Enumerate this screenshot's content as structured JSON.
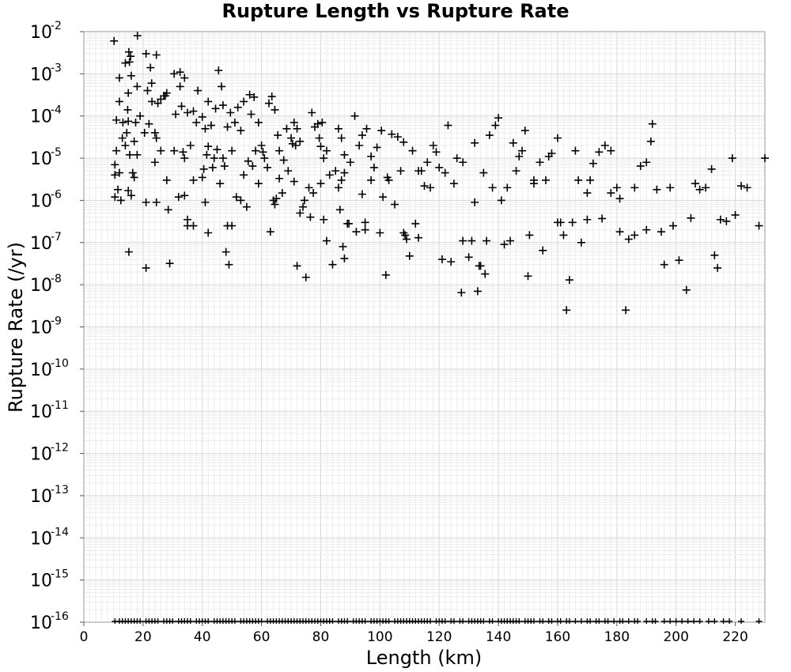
{
  "chart_data": {
    "type": "scatter",
    "title": "Rupture Length vs Rupture Rate",
    "xlabel": "Length (km)",
    "ylabel": "Rupture Rate (/yr)",
    "xlim": [
      0,
      230
    ],
    "ylim_log10": [
      -16,
      -2
    ],
    "yscale": "log",
    "grid": true,
    "marker": "plus",
    "marker_color": "#000000",
    "xticks": [
      0,
      20,
      40,
      60,
      80,
      100,
      120,
      140,
      160,
      180,
      200,
      220
    ],
    "yticks": [
      {
        "base": "10",
        "exp": "-2",
        "value": -2
      },
      {
        "base": "10",
        "exp": "-3",
        "value": -3
      },
      {
        "base": "10",
        "exp": "-4",
        "value": -4
      },
      {
        "base": "10",
        "exp": "-5",
        "value": -5
      },
      {
        "base": "10",
        "exp": "-6",
        "value": -6
      },
      {
        "base": "10",
        "exp": "-7",
        "value": -7
      },
      {
        "base": "10",
        "exp": "-8",
        "value": -8
      },
      {
        "base": "10",
        "exp": "-9",
        "value": -9
      },
      {
        "base": "10",
        "exp": "-10",
        "value": -10
      },
      {
        "base": "10",
        "exp": "-11",
        "value": -11
      },
      {
        "base": "10",
        "exp": "-12",
        "value": -12
      },
      {
        "base": "10",
        "exp": "-13",
        "value": -13
      },
      {
        "base": "10",
        "exp": "-14",
        "value": -14
      },
      {
        "base": "10",
        "exp": "-15",
        "value": -15
      },
      {
        "base": "10",
        "exp": "-16",
        "value": -16
      }
    ],
    "points": [
      [
        10.2,
        0.006
      ],
      [
        18.1,
        0.008
      ],
      [
        15.2,
        0.0033
      ],
      [
        15.8,
        0.0026
      ],
      [
        14.0,
        0.0018
      ],
      [
        15.4,
        0.0019
      ],
      [
        12.0,
        0.0008
      ],
      [
        16.0,
        0.0009
      ],
      [
        21.0,
        0.003
      ],
      [
        24.5,
        0.0028
      ],
      [
        22.5,
        0.0014
      ],
      [
        22.9,
        0.0006
      ],
      [
        18.0,
        0.0005
      ],
      [
        21.5,
        0.0004
      ],
      [
        15.0,
        0.00035
      ],
      [
        12.0,
        0.00022
      ],
      [
        14.8,
        0.00014
      ],
      [
        11.0,
        8e-05
      ],
      [
        15.0,
        7.5e-05
      ],
      [
        13.2,
        7e-05
      ],
      [
        14.5,
        4e-05
      ],
      [
        11.0,
        1.5e-05
      ],
      [
        10.5,
        7e-06
      ],
      [
        10.5,
        4e-06
      ],
      [
        12.0,
        4.5e-06
      ],
      [
        14.0,
        2e-05
      ],
      [
        15.5,
        1.2e-05
      ],
      [
        16.5,
        4.5e-06
      ],
      [
        17.0,
        3.5e-06
      ],
      [
        18.0,
        1.2e-05
      ],
      [
        10.5,
        1.2e-06
      ],
      [
        11.5,
        1.8e-06
      ],
      [
        12.5,
        1e-06
      ],
      [
        15.0,
        1.7e-06
      ],
      [
        16.0,
        1.3e-06
      ],
      [
        15.2,
        6e-08
      ],
      [
        21.0,
        2.5e-08
      ],
      [
        21.0,
        9e-07
      ],
      [
        24.5,
        9e-07
      ],
      [
        24.0,
        8e-06
      ],
      [
        26.0,
        1.5e-05
      ],
      [
        28.0,
        3e-06
      ],
      [
        29.0,
        3.2e-08
      ],
      [
        28.5,
        6e-07
      ],
      [
        30.5,
        1.5e-05
      ],
      [
        32.0,
        1.2e-06
      ],
      [
        34.0,
        1.3e-06
      ],
      [
        35.0,
        3.5e-07
      ],
      [
        35.0,
        2.5e-07
      ],
      [
        37.0,
        2.5e-07
      ],
      [
        37.0,
        3e-06
      ],
      [
        34.0,
        1e-05
      ],
      [
        33.5,
        1.4e-05
      ],
      [
        31.0,
        0.00011
      ],
      [
        33.0,
        0.00017
      ],
      [
        35.0,
        0.00012
      ],
      [
        37.0,
        0.00013
      ],
      [
        38.5,
        0.0004
      ],
      [
        40.0,
        9.5e-05
      ],
      [
        42.0,
        0.00022
      ],
      [
        41.0,
        5e-05
      ],
      [
        30.5,
        0.001
      ],
      [
        32.5,
        0.0011
      ],
      [
        34.0,
        0.0008
      ],
      [
        32.5,
        0.0005
      ],
      [
        28.0,
        0.00035
      ],
      [
        26.0,
        0.00025
      ],
      [
        25.0,
        0.0002
      ],
      [
        22.0,
        6.5e-05
      ],
      [
        24.0,
        4e-05
      ],
      [
        24.5,
        3e-05
      ],
      [
        27.5,
        0.0003
      ],
      [
        41.5,
        1.2e-05
      ],
      [
        40.5,
        5.5e-06
      ],
      [
        40.0,
        3.5e-06
      ],
      [
        41.0,
        9e-07
      ],
      [
        42.0,
        1.7e-07
      ],
      [
        42.0,
        1.9e-05
      ],
      [
        43.5,
        6e-06
      ],
      [
        44.0,
        1e-05
      ],
      [
        46.0,
        2.5e-06
      ],
      [
        47.5,
        6.5e-06
      ],
      [
        47.0,
        1e-05
      ],
      [
        48.5,
        5.5e-05
      ],
      [
        49.5,
        0.00012
      ],
      [
        47.0,
        0.00018
      ],
      [
        46.5,
        0.0005
      ],
      [
        45.5,
        0.0012
      ],
      [
        44.5,
        0.00015
      ],
      [
        43.0,
        6e-05
      ],
      [
        48.0,
        6e-08
      ],
      [
        49.0,
        3e-08
      ],
      [
        48.5,
        2.5e-07
      ],
      [
        50.0,
        2.5e-07
      ],
      [
        51.5,
        1.2e-06
      ],
      [
        53.0,
        1e-06
      ],
      [
        54.0,
        4e-06
      ],
      [
        55.0,
        7e-07
      ],
      [
        55.5,
        8.5e-06
      ],
      [
        56.0,
        0.00032
      ],
      [
        57.5,
        0.00028
      ],
      [
        56.5,
        0.00011
      ],
      [
        59.0,
        7e-05
      ],
      [
        58.0,
        1.5e-05
      ],
      [
        57.0,
        6.5e-06
      ],
      [
        60.0,
        2e-05
      ],
      [
        60.5,
        1.4e-05
      ],
      [
        61.0,
        1e-05
      ],
      [
        63.5,
        0.00029
      ],
      [
        63.0,
        1.8e-07
      ],
      [
        64.0,
        1e-06
      ],
      [
        64.5,
        8e-07
      ],
      [
        65.0,
        1.1e-06
      ],
      [
        66.0,
        3.3e-06
      ],
      [
        67.0,
        1.5e-06
      ],
      [
        66.0,
        1.5e-05
      ],
      [
        65.5,
        3.5e-05
      ],
      [
        64.5,
        0.00014
      ],
      [
        62.5,
        0.0002
      ],
      [
        68.5,
        5e-05
      ],
      [
        70.0,
        3e-05
      ],
      [
        70.5,
        2.2e-05
      ],
      [
        71.0,
        7e-05
      ],
      [
        72.0,
        5e-05
      ],
      [
        71.0,
        2.8e-06
      ],
      [
        72.0,
        2.8e-08
      ],
      [
        73.0,
        5e-07
      ],
      [
        74.0,
        7e-07
      ],
      [
        75.0,
        1.5e-08
      ],
      [
        76.5,
        4e-07
      ],
      [
        74.5,
        1e-06
      ],
      [
        76.0,
        2e-06
      ],
      [
        77.0,
        0.00012
      ],
      [
        79.0,
        6.5e-05
      ],
      [
        80.5,
        7e-05
      ],
      [
        79.5,
        3e-05
      ],
      [
        80.0,
        1.9e-05
      ],
      [
        81.0,
        1e-05
      ],
      [
        82.0,
        1.1e-07
      ],
      [
        81.0,
        3.5e-07
      ],
      [
        80.0,
        2.5e-06
      ],
      [
        84.0,
        3e-08
      ],
      [
        86.0,
        2e-06
      ],
      [
        87.0,
        3e-06
      ],
      [
        88.0,
        4.5e-06
      ],
      [
        86.5,
        6e-07
      ],
      [
        87.5,
        8e-08
      ],
      [
        88.0,
        4.2e-08
      ],
      [
        89.5,
        2.8e-07
      ],
      [
        87.0,
        3e-05
      ],
      [
        88.0,
        1.2e-05
      ],
      [
        86.0,
        5e-05
      ],
      [
        91.5,
        0.0001
      ],
      [
        93.0,
        2e-05
      ],
      [
        92.0,
        1.8e-07
      ],
      [
        94.0,
        1.4e-06
      ],
      [
        95.0,
        3e-07
      ],
      [
        95.0,
        2e-07
      ],
      [
        97.0,
        1.1e-05
      ],
      [
        98.0,
        6e-06
      ],
      [
        99.0,
        1.8e-05
      ],
      [
        100.0,
        1.7e-07
      ],
      [
        101.0,
        1.2e-06
      ],
      [
        102.0,
        1.7e-08
      ],
      [
        102.5,
        3.5e-06
      ],
      [
        103.0,
        3e-06
      ],
      [
        104.0,
        3.7e-05
      ],
      [
        106.0,
        3.2e-05
      ],
      [
        105.0,
        8e-07
      ],
      [
        108.0,
        1.7e-07
      ],
      [
        108.5,
        1.5e-07
      ],
      [
        109.0,
        1.2e-07
      ],
      [
        110.0,
        4.8e-08
      ],
      [
        112.0,
        2.8e-07
      ],
      [
        113.0,
        1.3e-07
      ],
      [
        115.0,
        2.2e-06
      ],
      [
        114.0,
        5e-06
      ],
      [
        117.0,
        2e-06
      ],
      [
        118.0,
        2e-05
      ],
      [
        119.0,
        1.4e-05
      ],
      [
        120.0,
        6e-06
      ],
      [
        122.0,
        4.5e-06
      ],
      [
        123.0,
        6e-05
      ],
      [
        124.0,
        3.5e-08
      ],
      [
        125.0,
        2.5e-06
      ],
      [
        127.5,
        6.5e-09
      ],
      [
        128.0,
        1.1e-07
      ],
      [
        130.0,
        4.5e-08
      ],
      [
        131.0,
        1.1e-07
      ],
      [
        132.0,
        9e-07
      ],
      [
        133.0,
        7e-09
      ],
      [
        133.5,
        2.8e-08
      ],
      [
        134.0,
        2.8e-08
      ],
      [
        135.5,
        1.8e-08
      ],
      [
        136.0,
        1.1e-07
      ],
      [
        137.0,
        3.5e-05
      ],
      [
        139.0,
        6e-05
      ],
      [
        140.0,
        9e-05
      ],
      [
        141.0,
        1e-06
      ],
      [
        142.0,
        9e-08
      ],
      [
        144.0,
        1.1e-07
      ],
      [
        145.0,
        2.3e-05
      ],
      [
        147.0,
        1.1e-05
      ],
      [
        149.0,
        4.5e-05
      ],
      [
        150.0,
        1.6e-08
      ],
      [
        150.5,
        1.5e-07
      ],
      [
        152.0,
        2.5e-06
      ],
      [
        155.0,
        6.5e-08
      ],
      [
        156.0,
        3e-06
      ],
      [
        158.0,
        1.3e-05
      ],
      [
        160.0,
        3e-05
      ],
      [
        161.0,
        3e-07
      ],
      [
        162.0,
        1.5e-07
      ],
      [
        163.0,
        2.5e-09
      ],
      [
        164.0,
        1.3e-08
      ],
      [
        165.0,
        3e-07
      ],
      [
        166.0,
        1.5e-05
      ],
      [
        168.0,
        1e-07
      ],
      [
        170.0,
        3.5e-07
      ],
      [
        172.0,
        7.5e-06
      ],
      [
        174.0,
        1.4e-05
      ],
      [
        176.0,
        2e-05
      ],
      [
        178.0,
        1.5e-06
      ],
      [
        180.0,
        2e-06
      ],
      [
        181.0,
        1.8e-07
      ],
      [
        183.0,
        2.5e-09
      ],
      [
        184.0,
        1.2e-07
      ],
      [
        186.0,
        2e-06
      ],
      [
        188.0,
        6.5e-06
      ],
      [
        190.0,
        8e-06
      ],
      [
        191.5,
        2.5e-05
      ],
      [
        192.0,
        6.5e-05
      ],
      [
        193.5,
        1.8e-06
      ],
      [
        196.0,
        3e-08
      ],
      [
        198.0,
        2e-06
      ],
      [
        201.0,
        3.8e-08
      ],
      [
        203.5,
        7.5e-09
      ],
      [
        205.0,
        3.8e-07
      ],
      [
        206.5,
        2.5e-06
      ],
      [
        208.0,
        1.8e-06
      ],
      [
        210.0,
        2e-06
      ],
      [
        212.0,
        5.5e-06
      ],
      [
        213.0,
        5e-08
      ],
      [
        214.0,
        2.5e-08
      ],
      [
        215.0,
        3.5e-07
      ],
      [
        217.0,
        3.2e-07
      ],
      [
        219.0,
        1e-05
      ],
      [
        220.0,
        4.5e-07
      ],
      [
        222.0,
        2.2e-06
      ],
      [
        224.0,
        2e-06
      ],
      [
        228.0,
        2.5e-07
      ],
      [
        230.0,
        1e-05
      ],
      [
        199.0,
        2.5e-07
      ],
      [
        195.0,
        1.8e-07
      ],
      [
        190.0,
        2e-07
      ],
      [
        186.0,
        1.5e-07
      ],
      [
        175.0,
        3.7e-07
      ],
      [
        170.0,
        1.5e-06
      ],
      [
        167.0,
        3e-06
      ],
      [
        157.0,
        1.1e-05
      ],
      [
        154.0,
        8e-06
      ],
      [
        146.0,
        5e-06
      ],
      [
        143.0,
        2e-06
      ],
      [
        138.0,
        2e-06
      ],
      [
        126.0,
        1e-05
      ],
      [
        121.0,
        4e-08
      ],
      [
        116.0,
        8e-06
      ],
      [
        111.0,
        1.5e-05
      ],
      [
        107.0,
        5e-06
      ],
      [
        97.0,
        3e-06
      ],
      [
        94.0,
        3.5e-05
      ],
      [
        90.0,
        8e-06
      ],
      [
        85.0,
        5e-06
      ],
      [
        82.0,
        1.5e-05
      ],
      [
        78.0,
        5.5e-05
      ],
      [
        73.0,
        2.5e-05
      ],
      [
        69.0,
        5e-06
      ],
      [
        67.5,
        9e-06
      ],
      [
        62.0,
        6e-06
      ],
      [
        59.0,
        2.5e-06
      ],
      [
        53.0,
        4.5e-05
      ],
      [
        51.0,
        7e-05
      ],
      [
        52.0,
        0.00016
      ],
      [
        54.0,
        0.00022
      ],
      [
        50.0,
        1.5e-05
      ],
      [
        45.0,
        1.6e-05
      ],
      [
        38.0,
        7e-05
      ],
      [
        36.0,
        2e-05
      ],
      [
        27.0,
        0.0003
      ],
      [
        23.0,
        0.00022
      ],
      [
        19.0,
        0.0001
      ],
      [
        17.5,
        7e-05
      ],
      [
        20.5,
        4e-05
      ],
      [
        13.0,
        3e-05
      ],
      [
        17.0,
        2.5e-05
      ],
      [
        108.0,
        2.4e-05
      ],
      [
        113.0,
        5e-06
      ],
      [
        128.0,
        8e-06
      ],
      [
        132.0,
        2.3e-05
      ],
      [
        135.0,
        4.5e-06
      ],
      [
        148.0,
        1.5e-05
      ],
      [
        152.0,
        3e-06
      ],
      [
        160.0,
        3e-07
      ],
      [
        171.0,
        3e-06
      ],
      [
        178.0,
        1.5e-05
      ],
      [
        181.0,
        1.1e-06
      ],
      [
        100.5,
        4.5e-05
      ],
      [
        95.5,
        5e-05
      ],
      [
        89.0,
        2.8e-07
      ],
      [
        83.0,
        4e-06
      ],
      [
        77.5,
        1.5e-06
      ],
      [
        71.5,
        2e-05
      ]
    ],
    "rug_x": [
      10.5,
      12,
      13,
      14,
      15,
      16,
      17,
      18,
      19,
      21,
      22,
      23,
      24,
      25,
      27,
      28,
      29,
      30,
      32,
      33,
      34,
      35,
      36,
      38,
      39,
      40,
      41,
      42,
      44,
      45,
      46,
      47,
      48,
      49,
      50,
      51,
      53,
      54,
      55,
      56,
      57,
      58,
      59,
      60,
      62,
      63,
      64,
      65,
      66,
      67,
      68,
      69,
      70,
      71,
      72,
      73,
      74,
      75,
      76,
      77,
      78,
      79,
      80,
      81,
      82,
      83,
      84,
      86,
      87,
      88,
      89,
      91,
      92,
      93,
      94,
      95,
      97,
      98,
      99,
      100,
      101,
      102,
      103,
      105,
      106,
      107,
      108,
      109,
      110,
      111,
      112,
      113,
      114,
      115,
      116,
      117,
      119,
      120,
      121,
      122,
      124,
      125,
      127,
      128,
      130,
      131,
      132,
      133,
      134,
      135,
      137,
      138,
      140,
      141,
      142,
      143,
      144,
      145,
      146,
      147,
      149,
      150,
      151,
      152,
      154,
      155,
      157,
      158,
      160,
      161,
      163,
      164,
      166,
      168,
      170,
      171,
      173,
      174,
      176,
      177,
      179,
      181,
      182,
      184,
      186,
      187,
      190,
      192,
      193,
      196,
      198,
      200,
      202,
      204,
      206,
      208,
      211,
      213,
      216,
      218,
      222,
      228
    ]
  }
}
